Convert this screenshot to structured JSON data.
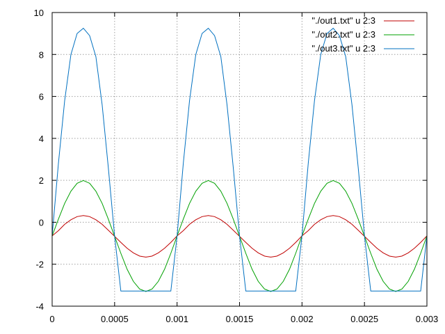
{
  "chart_data": {
    "type": "line",
    "title": "",
    "xlabel": "",
    "ylabel": "",
    "xlim": [
      0,
      0.003
    ],
    "ylim": [
      -4,
      10
    ],
    "grid": true,
    "legend_position": "top-right",
    "x_ticks": [
      0,
      0.0005,
      0.001,
      0.0015,
      0.002,
      0.0025,
      0.003
    ],
    "x_tick_labels": [
      "0",
      "0.0005",
      "0.001",
      "0.0015",
      "0.002",
      "0.0025",
      "0.003"
    ],
    "y_ticks": [
      -4,
      -2,
      0,
      2,
      4,
      6,
      8,
      10
    ],
    "y_tick_labels": [
      "-4",
      "-2",
      "0",
      "2",
      "4",
      "6",
      "8",
      "10"
    ],
    "x": [
      0,
      5e-05,
      0.0001,
      0.00015,
      0.0002,
      0.00025,
      0.0003,
      0.00035,
      0.0004,
      0.00045,
      0.0005,
      0.00055,
      0.0006,
      0.00065,
      0.0007,
      0.00075,
      0.0008,
      0.00085,
      0.0009,
      0.00095,
      0.001,
      0.00105,
      0.0011,
      0.00115,
      0.0012,
      0.00125,
      0.0013,
      0.00135,
      0.0014,
      0.00145,
      0.0015,
      0.00155,
      0.0016,
      0.00165,
      0.0017,
      0.00175,
      0.0018,
      0.00185,
      0.0019,
      0.00195,
      0.002,
      0.00205,
      0.0021,
      0.00215,
      0.0022,
      0.00225,
      0.0023,
      0.00235,
      0.0024,
      0.00245,
      0.0025,
      0.00255,
      0.0026,
      0.00265,
      0.0027,
      0.00275,
      0.0028,
      0.00285,
      0.0029,
      0.00295,
      0.003
    ],
    "series": [
      {
        "name": "\"./out1.txt\" u 2:3",
        "color": "#c00000",
        "values": [
          -0.65,
          -0.4,
          -0.1,
          0.12,
          0.27,
          0.32,
          0.27,
          0.12,
          -0.1,
          -0.38,
          -0.67,
          -0.96,
          -1.24,
          -1.46,
          -1.61,
          -1.66,
          -1.61,
          -1.46,
          -1.24,
          -0.96,
          -0.65,
          -0.4,
          -0.1,
          0.12,
          0.27,
          0.32,
          0.27,
          0.12,
          -0.1,
          -0.38,
          -0.67,
          -0.96,
          -1.24,
          -1.46,
          -1.61,
          -1.66,
          -1.61,
          -1.46,
          -1.24,
          -0.96,
          -0.65,
          -0.4,
          -0.1,
          0.12,
          0.27,
          0.32,
          0.27,
          0.12,
          -0.1,
          -0.38,
          -0.67,
          -0.96,
          -1.24,
          -1.46,
          -1.61,
          -1.66,
          -1.61,
          -1.46,
          -1.24,
          -0.96,
          -0.65
        ]
      },
      {
        "name": "\"./out2.txt\" u 2:3",
        "color": "#00a000",
        "values": [
          -0.65,
          0.15,
          0.9,
          1.48,
          1.86,
          1.99,
          1.86,
          1.48,
          0.9,
          0.15,
          -0.67,
          -1.48,
          -2.24,
          -2.82,
          -3.18,
          -3.3,
          -3.18,
          -2.82,
          -2.24,
          -1.48,
          -0.65,
          0.15,
          0.9,
          1.48,
          1.86,
          1.99,
          1.86,
          1.48,
          0.9,
          0.15,
          -0.67,
          -1.48,
          -2.24,
          -2.82,
          -3.18,
          -3.3,
          -3.18,
          -2.82,
          -2.24,
          -1.48,
          -0.65,
          0.15,
          0.9,
          1.48,
          1.86,
          1.99,
          1.86,
          1.48,
          0.9,
          0.15,
          -0.67,
          -1.48,
          -2.24,
          -2.82,
          -3.18,
          -3.3,
          -3.18,
          -2.82,
          -2.24,
          -1.48,
          -0.65
        ]
      },
      {
        "name": "\"./out3.txt\" u 2:3",
        "color": "#0070c0",
        "values": [
          -0.65,
          2.8,
          5.8,
          8.0,
          9.0,
          9.25,
          8.9,
          7.9,
          5.6,
          2.6,
          -0.65,
          -3.28,
          -3.28,
          -3.28,
          -3.28,
          -3.28,
          -3.28,
          -3.28,
          -3.28,
          -3.28,
          -0.65,
          2.8,
          5.8,
          8.0,
          9.0,
          9.25,
          8.9,
          7.9,
          5.6,
          2.6,
          -0.65,
          -3.28,
          -3.28,
          -3.28,
          -3.28,
          -3.28,
          -3.28,
          -3.28,
          -3.28,
          -3.28,
          -0.65,
          2.8,
          5.8,
          8.0,
          9.0,
          9.25,
          8.9,
          7.9,
          5.6,
          2.6,
          -0.65,
          -3.28,
          -3.28,
          -3.28,
          -3.28,
          -3.28,
          -3.28,
          -3.28,
          -3.28,
          -3.28,
          -0.65
        ]
      }
    ]
  }
}
